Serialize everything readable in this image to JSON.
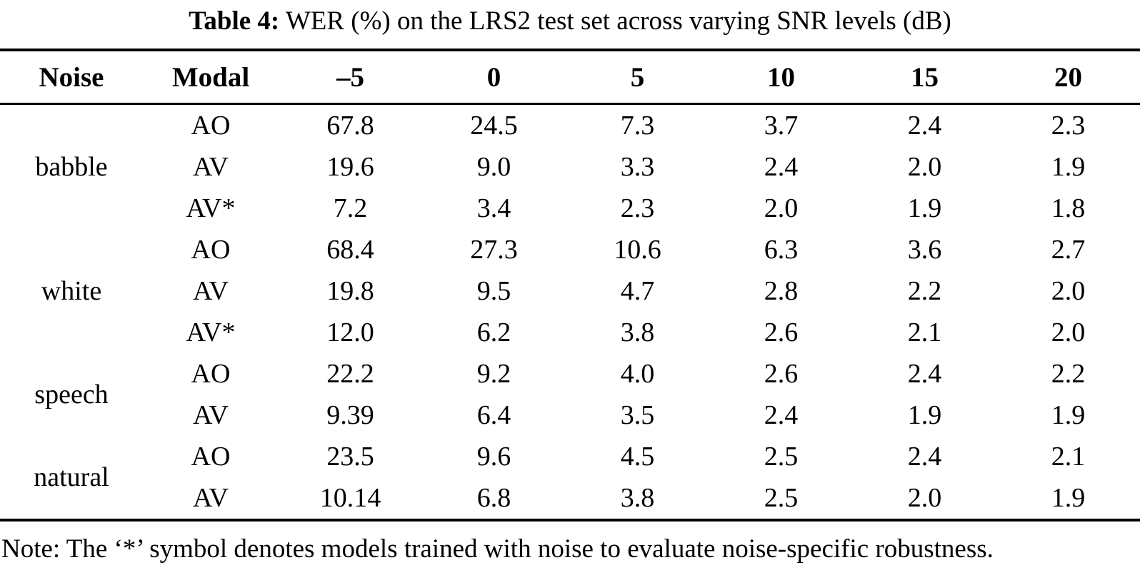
{
  "caption": {
    "label": "Table 4:",
    "text": " WER (%) on the LRS2 test set across varying SNR levels (dB)"
  },
  "table": {
    "columns": {
      "noise": "Noise",
      "modal": "Modal",
      "snr": [
        "–5",
        "0",
        "5",
        "10",
        "15",
        "20"
      ]
    },
    "groups": [
      {
        "noise": "babble",
        "rows": [
          {
            "modal": "AO",
            "values": [
              "67.8",
              "24.5",
              "7.3",
              "3.7",
              "2.4",
              "2.3"
            ]
          },
          {
            "modal": "AV",
            "values": [
              "19.6",
              "9.0",
              "3.3",
              "2.4",
              "2.0",
              "1.9"
            ]
          },
          {
            "modal": "AV*",
            "values": [
              "7.2",
              "3.4",
              "2.3",
              "2.0",
              "1.9",
              "1.8"
            ]
          }
        ]
      },
      {
        "noise": "white",
        "rows": [
          {
            "modal": "AO",
            "values": [
              "68.4",
              "27.3",
              "10.6",
              "6.3",
              "3.6",
              "2.7"
            ]
          },
          {
            "modal": "AV",
            "values": [
              "19.8",
              "9.5",
              "4.7",
              "2.8",
              "2.2",
              "2.0"
            ]
          },
          {
            "modal": "AV*",
            "values": [
              "12.0",
              "6.2",
              "3.8",
              "2.6",
              "2.1",
              "2.0"
            ]
          }
        ]
      },
      {
        "noise": "speech",
        "rows": [
          {
            "modal": "AO",
            "values": [
              "22.2",
              "9.2",
              "4.0",
              "2.6",
              "2.4",
              "2.2"
            ]
          },
          {
            "modal": "AV",
            "values": [
              "9.39",
              "6.4",
              "3.5",
              "2.4",
              "1.9",
              "1.9"
            ]
          }
        ]
      },
      {
        "noise": "natural",
        "rows": [
          {
            "modal": "AO",
            "values": [
              "23.5",
              "9.6",
              "4.5",
              "2.5",
              "2.4",
              "2.1"
            ]
          },
          {
            "modal": "AV",
            "values": [
              "10.14",
              "6.8",
              "3.8",
              "2.5",
              "2.0",
              "1.9"
            ]
          }
        ]
      }
    ]
  },
  "note": {
    "text": "Note: The ‘*’ symbol denotes models trained with noise to evaluate noise-specific robustness."
  }
}
